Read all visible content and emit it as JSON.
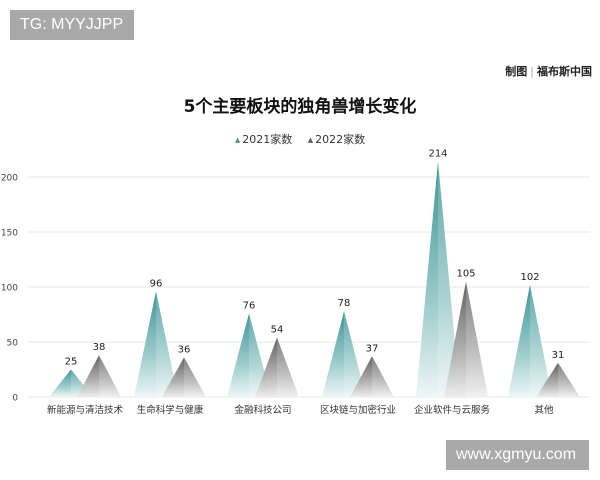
{
  "watermarks": {
    "top": "TG: MYYJJPP",
    "bottom": "www.xgmyu.com"
  },
  "credit": {
    "label": "制图",
    "separator": "|",
    "source": "福布斯中国"
  },
  "colors": {
    "series_2021": "#4a9a9c",
    "series_2022": "#5f5f5f",
    "grid": "#eeeeee",
    "watermark_bg": "#a9a9a9"
  },
  "chart_data": {
    "type": "bar",
    "title": "5个主要板块的独角兽增长变化",
    "xlabel": "",
    "ylabel": "",
    "ylim": [
      0,
      200
    ],
    "yticks": [
      0,
      50,
      100,
      150,
      200
    ],
    "grid": true,
    "legend_position": "top",
    "categories": [
      "新能源与清洁技术",
      "生命科学与健康",
      "金融科技公司",
      "区块链与加密行业",
      "企业软件与云服务",
      "其他"
    ],
    "series": [
      {
        "name": "2021家数",
        "values": [
          25,
          96,
          76,
          78,
          214,
          102
        ]
      },
      {
        "name": "2022家数",
        "values": [
          38,
          36,
          54,
          37,
          105,
          31
        ]
      }
    ]
  }
}
